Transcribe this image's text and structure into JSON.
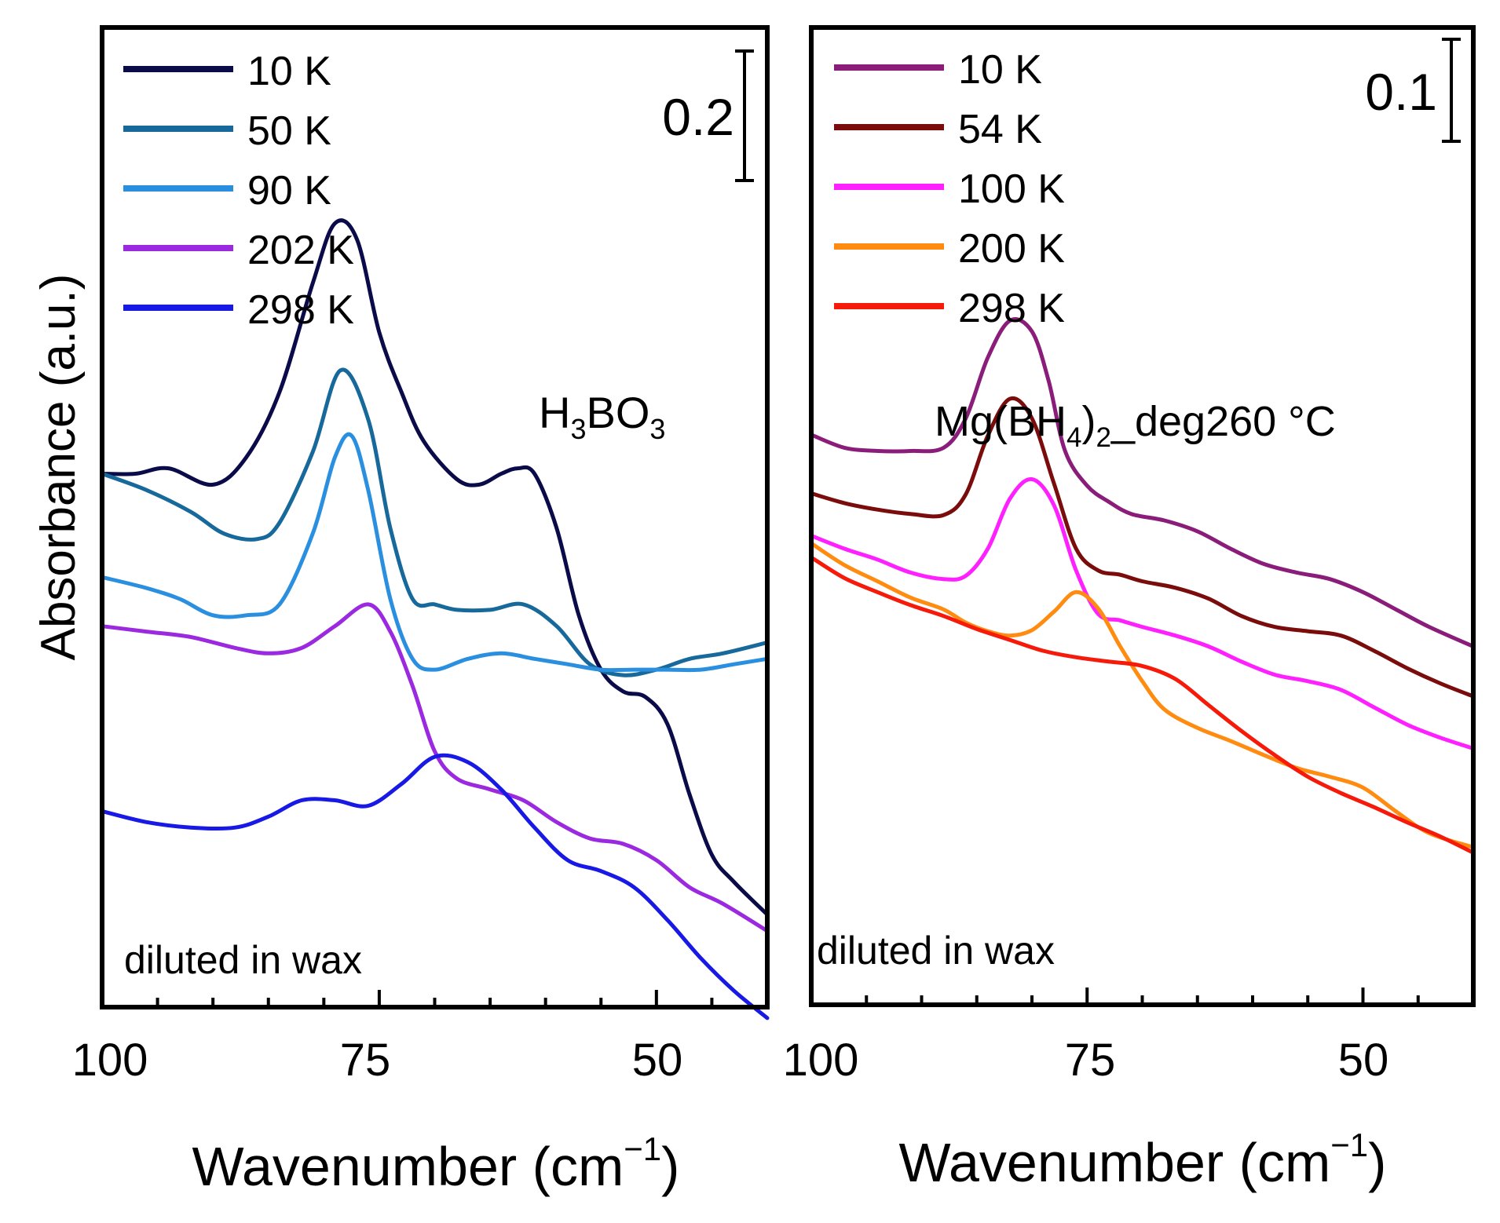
{
  "y_axis_label": "Absorbance (a.u.)",
  "chart_data": [
    {
      "type": "line",
      "panel": "left",
      "sample_label": {
        "base": "H",
        "sub1": "3",
        "mid": "BO",
        "sub2": "3"
      },
      "xlabel": {
        "main": "Wavenumber (cm",
        "sup": "−1",
        "close": ")"
      },
      "xlim": [
        100,
        40
      ],
      "ylim": [
        0,
        1.8
      ],
      "x_ticks": [
        100,
        75,
        50
      ],
      "x_tick_labels": [
        "100",
        "75",
        "50"
      ],
      "x_minor_ticks": [
        95,
        90,
        85,
        80,
        70,
        65,
        60,
        55,
        45,
        40
      ],
      "scale_bar": {
        "label": "0.2",
        "value": 0.2
      },
      "annotation": "diluted in wax",
      "series": [
        {
          "name": "10 K",
          "color": "#0b0b4a",
          "x": [
            100,
            97,
            94,
            90,
            87,
            84,
            81,
            79,
            77,
            75,
            73,
            71,
            68,
            66,
            64,
            62.5,
            61,
            59,
            57,
            55,
            53,
            51,
            49,
            47,
            45,
            43,
            40
          ],
          "y": [
            0.98,
            0.98,
            0.99,
            0.96,
            1.01,
            1.13,
            1.33,
            1.44,
            1.41,
            1.24,
            1.13,
            1.04,
            0.97,
            0.96,
            0.98,
            0.99,
            0.98,
            0.88,
            0.72,
            0.62,
            0.58,
            0.57,
            0.52,
            0.39,
            0.28,
            0.23,
            0.17
          ]
        },
        {
          "name": "50 K",
          "color": "#17699b",
          "x": [
            100,
            96,
            92,
            89,
            86,
            84,
            81,
            78.5,
            76,
            74,
            72,
            70,
            68,
            65,
            62,
            59,
            56,
            53,
            50,
            47,
            44,
            40
          ],
          "y": [
            0.98,
            0.95,
            0.91,
            0.87,
            0.86,
            0.89,
            1.02,
            1.17,
            1.08,
            0.88,
            0.75,
            0.74,
            0.73,
            0.73,
            0.74,
            0.7,
            0.63,
            0.61,
            0.62,
            0.64,
            0.65,
            0.67
          ]
        },
        {
          "name": "90 K",
          "color": "#2b8fe0",
          "x": [
            100,
            96,
            93,
            90,
            87,
            84,
            81,
            79,
            77.5,
            76,
            74,
            72,
            70,
            67,
            64,
            61,
            58,
            55,
            52,
            49,
            46,
            43,
            40
          ],
          "y": [
            0.79,
            0.77,
            0.75,
            0.72,
            0.72,
            0.74,
            0.87,
            1.01,
            1.05,
            0.95,
            0.75,
            0.64,
            0.62,
            0.64,
            0.65,
            0.64,
            0.63,
            0.62,
            0.62,
            0.62,
            0.62,
            0.63,
            0.64
          ]
        },
        {
          "name": "202 K",
          "color": "#9b29e0",
          "x": [
            100,
            96,
            92,
            88,
            85,
            82,
            79,
            76,
            74,
            72,
            70,
            68,
            65,
            62,
            59,
            56,
            53,
            50,
            47,
            44,
            40
          ],
          "y": [
            0.7,
            0.69,
            0.68,
            0.66,
            0.65,
            0.66,
            0.7,
            0.74,
            0.69,
            0.59,
            0.47,
            0.42,
            0.4,
            0.38,
            0.34,
            0.31,
            0.3,
            0.27,
            0.22,
            0.19,
            0.14
          ]
        },
        {
          "name": "298 K",
          "color": "#1919e6",
          "x": [
            100,
            96,
            92,
            88,
            85,
            82,
            79,
            76,
            73,
            70,
            67,
            64,
            61,
            58,
            55,
            52,
            49,
            46,
            43,
            40
          ],
          "y": [
            0.36,
            0.34,
            0.33,
            0.33,
            0.35,
            0.38,
            0.38,
            0.37,
            0.41,
            0.46,
            0.45,
            0.4,
            0.33,
            0.27,
            0.25,
            0.22,
            0.16,
            0.09,
            0.03,
            -0.02
          ]
        }
      ]
    },
    {
      "type": "line",
      "panel": "right",
      "sample_label": {
        "base": "Mg(BH",
        "sub1": "4",
        "mid": ")",
        "sub2": "2",
        "tail": "_deg260 °C"
      },
      "xlabel": {
        "main": "Wavenumber (cm",
        "sup": "−1",
        "close": ")"
      },
      "xlim": [
        100,
        40
      ],
      "ylim": [
        0,
        0.9
      ],
      "x_ticks": [
        100,
        75,
        50
      ],
      "x_tick_labels": [
        "100",
        "75",
        "50"
      ],
      "x_minor_ticks": [
        95,
        90,
        85,
        80,
        70,
        65,
        60,
        55,
        45
      ],
      "scale_bar": {
        "label": "0.1",
        "value": 0.1
      },
      "annotation": "diluted in wax",
      "series": [
        {
          "name": "10 K",
          "color": "#8b1d7a",
          "x": [
            100,
            97,
            94,
            91,
            88,
            86,
            84,
            82,
            80,
            78.5,
            77,
            75,
            73,
            71,
            68,
            65,
            62,
            59,
            56,
            53,
            50,
            47,
            44,
            40
          ],
          "y": [
            0.525,
            0.513,
            0.51,
            0.51,
            0.513,
            0.54,
            0.596,
            0.63,
            0.62,
            0.575,
            0.51,
            0.478,
            0.463,
            0.452,
            0.446,
            0.436,
            0.42,
            0.406,
            0.398,
            0.392,
            0.38,
            0.364,
            0.348,
            0.33
          ]
        },
        {
          "name": "54 K",
          "color": "#7a0c0c",
          "x": [
            100,
            97,
            94,
            91,
            88,
            86,
            84,
            82,
            80,
            78,
            76,
            74,
            72,
            70,
            67,
            64,
            61,
            58,
            55,
            52,
            49,
            46,
            43,
            40
          ],
          "y": [
            0.471,
            0.462,
            0.456,
            0.452,
            0.451,
            0.47,
            0.524,
            0.558,
            0.54,
            0.48,
            0.42,
            0.4,
            0.396,
            0.39,
            0.384,
            0.374,
            0.358,
            0.348,
            0.344,
            0.34,
            0.326,
            0.31,
            0.296,
            0.284
          ]
        },
        {
          "name": "100 K",
          "color": "#ff20ff",
          "x": [
            100,
            97,
            94,
            91,
            88,
            86,
            84,
            82,
            80,
            78,
            76,
            74,
            72,
            70,
            67,
            64,
            61,
            58,
            55,
            52,
            49,
            46,
            43,
            40
          ],
          "y": [
            0.432,
            0.42,
            0.41,
            0.398,
            0.392,
            0.395,
            0.42,
            0.466,
            0.484,
            0.46,
            0.4,
            0.36,
            0.354,
            0.348,
            0.34,
            0.33,
            0.316,
            0.304,
            0.298,
            0.29,
            0.274,
            0.258,
            0.246,
            0.236
          ]
        },
        {
          "name": "200 K",
          "color": "#ff8c10",
          "x": [
            100,
            97,
            94,
            91,
            88,
            86,
            84,
            82,
            80,
            78,
            76,
            74,
            72,
            70,
            68,
            65,
            62,
            59,
            56,
            53,
            50,
            47,
            44,
            40
          ],
          "y": [
            0.425,
            0.405,
            0.39,
            0.375,
            0.364,
            0.352,
            0.344,
            0.34,
            0.345,
            0.362,
            0.38,
            0.365,
            0.33,
            0.298,
            0.272,
            0.255,
            0.243,
            0.23,
            0.218,
            0.21,
            0.2,
            0.178,
            0.158,
            0.145
          ]
        },
        {
          "name": "298 K",
          "color": "#f51a0a",
          "x": [
            100,
            97,
            94,
            91,
            88,
            85,
            82,
            79,
            76,
            73,
            70,
            67,
            64,
            61,
            58,
            55,
            52,
            49,
            46,
            43,
            40
          ],
          "y": [
            0.412,
            0.393,
            0.38,
            0.368,
            0.358,
            0.346,
            0.336,
            0.326,
            0.32,
            0.316,
            0.312,
            0.3,
            0.276,
            0.252,
            0.23,
            0.21,
            0.195,
            0.182,
            0.168,
            0.155,
            0.14
          ]
        }
      ]
    }
  ]
}
